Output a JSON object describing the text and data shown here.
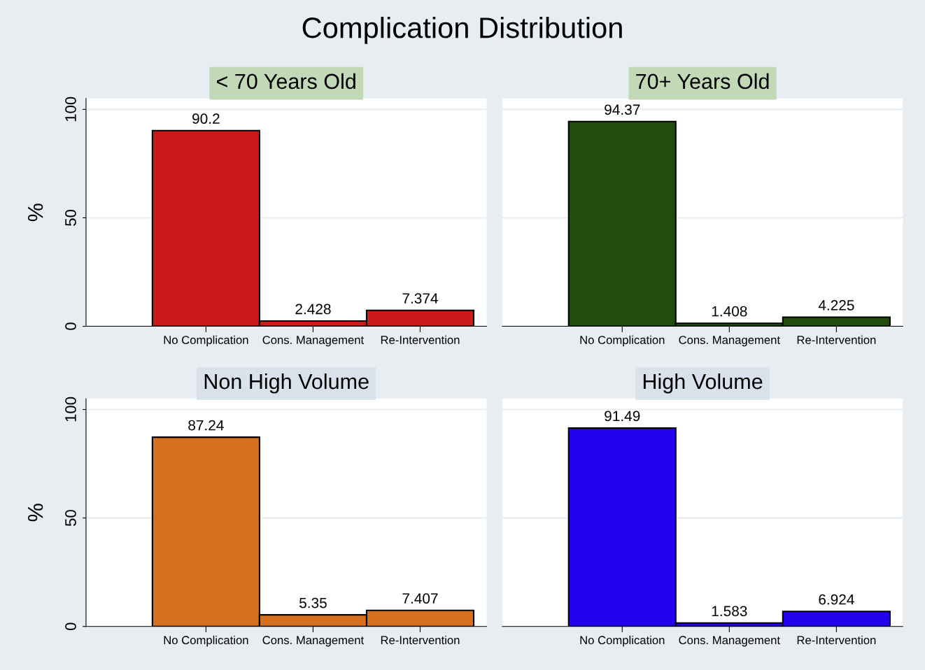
{
  "chart_data": [
    {
      "type": "bar",
      "title": "Complication Distribution",
      "subtitle": "< 70 Years Old",
      "ylabel": "%",
      "categories": [
        "No Complication",
        "Cons. Management",
        "Re-Intervention"
      ],
      "values": [
        90.2,
        2.428,
        7.374
      ],
      "color": "#cc1a1a",
      "ylim": [
        0,
        105
      ],
      "yticks": [
        0,
        50,
        100
      ],
      "grid": "y",
      "data_labels": true
    },
    {
      "type": "bar",
      "subtitle": "70+ Years Old",
      "categories": [
        "No Complication",
        "Cons. Management",
        "Re-Intervention"
      ],
      "values": [
        94.37,
        1.408,
        4.225
      ],
      "color": "#234a0f",
      "ylim": [
        0,
        105
      ],
      "grid": "y",
      "data_labels": true,
      "tick_labels": "x"
    },
    {
      "type": "bar",
      "subtitle": "Non High Volume",
      "ylabel": "%",
      "categories": [
        "No Complication",
        "Cons. Management",
        "Re-Intervention"
      ],
      "values": [
        87.24,
        5.35,
        7.407
      ],
      "color": "#d4701f",
      "ylim": [
        0,
        105
      ],
      "yticks": [
        0,
        50,
        100
      ],
      "grid": "y",
      "data_labels": true
    },
    {
      "type": "bar",
      "subtitle": "High Volume",
      "categories": [
        "No Complication",
        "Cons. Management",
        "Re-Intervention"
      ],
      "values": [
        91.49,
        1.583,
        6.924
      ],
      "color": "#2200ee",
      "ylim": [
        0,
        105
      ],
      "grid": "y",
      "data_labels": true,
      "tick_labels": "x"
    }
  ]
}
